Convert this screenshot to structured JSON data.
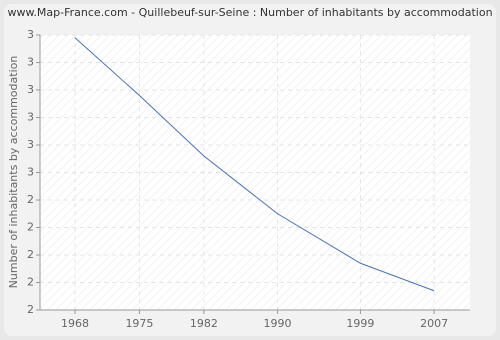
{
  "chart_data": {
    "type": "line",
    "title": "www.Map-France.com - Quillebeuf-sur-Seine : Number of inhabitants by accommodation",
    "y_label": "Number of inhabitants by accommodation",
    "x": [
      1968,
      1975,
      1982,
      1990,
      1999,
      2007
    ],
    "series": [
      {
        "name": "Number of inhabitants by accommodation",
        "color": "#4a72b0",
        "values": [
          2.99,
          2.78,
          2.56,
          2.35,
          2.17,
          2.07
        ]
      }
    ],
    "xlim": [
      1964.2,
      2010.9
    ],
    "xticks": [
      1968,
      1975,
      1982,
      1990,
      1999,
      2007
    ],
    "ylim": [
      2,
      3
    ],
    "yticks": [
      2,
      {
        "value": 2.1,
        "label": "2"
      },
      {
        "value": 2.2,
        "label": "2"
      },
      {
        "value": 2.3,
        "label": "2"
      },
      {
        "value": 2.4,
        "label": "2"
      },
      {
        "value": 2.5,
        "label": "3"
      },
      {
        "value": 2.6,
        "label": "3"
      },
      {
        "value": 2.7,
        "label": "3"
      },
      {
        "value": 2.8,
        "label": "3"
      },
      {
        "value": 2.9,
        "label": "3"
      },
      3
    ],
    "grid": true
  }
}
